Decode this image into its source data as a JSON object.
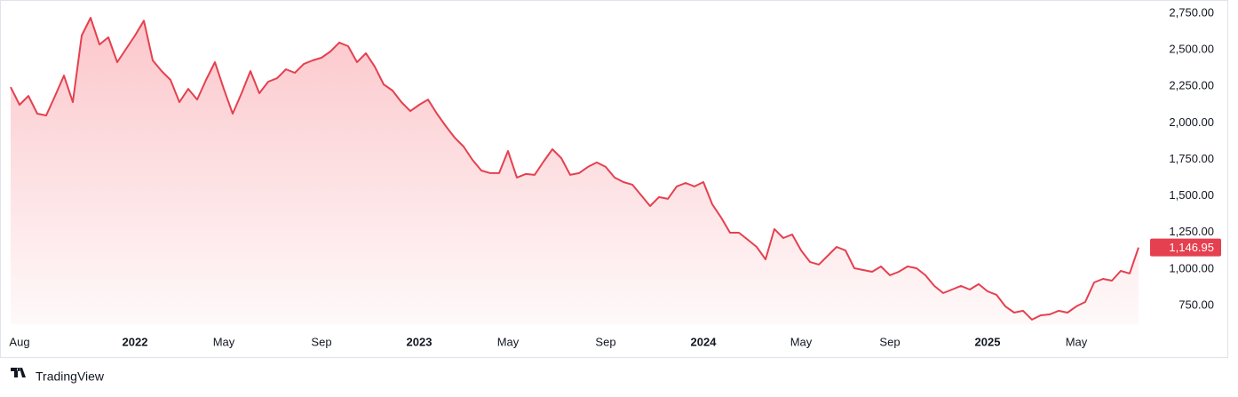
{
  "chart_data": {
    "type": "area",
    "brand": "TradingView",
    "color": "#e5404f",
    "last_price_label": "1,146.95",
    "categories": [
      null,
      "Aug",
      null,
      null,
      null,
      null,
      null,
      null,
      null,
      null,
      null,
      null,
      null,
      null,
      "2022",
      null,
      null,
      null,
      null,
      null,
      null,
      null,
      null,
      null,
      "May",
      null,
      null,
      null,
      null,
      null,
      null,
      null,
      null,
      null,
      null,
      "Sep",
      null,
      null,
      null,
      null,
      null,
      null,
      null,
      null,
      null,
      null,
      "2023",
      null,
      null,
      null,
      null,
      null,
      null,
      null,
      null,
      null,
      "May",
      null,
      null,
      null,
      null,
      null,
      null,
      null,
      null,
      null,
      null,
      "Sep",
      null,
      null,
      null,
      null,
      null,
      null,
      null,
      null,
      null,
      null,
      "2024",
      null,
      null,
      null,
      null,
      null,
      null,
      null,
      null,
      null,
      null,
      "May",
      null,
      null,
      null,
      null,
      null,
      null,
      null,
      null,
      null,
      "Sep",
      null,
      null,
      null,
      null,
      null,
      null,
      null,
      null,
      null,
      null,
      "2025",
      null,
      null,
      null,
      null,
      null,
      null,
      null,
      null,
      null,
      "May",
      null,
      null,
      null,
      null,
      null,
      null,
      null
    ],
    "values": [
      2245,
      2124,
      2185,
      2063,
      2051,
      2185,
      2324,
      2142,
      2598,
      2720,
      2537,
      2586,
      2416,
      2507,
      2598,
      2700,
      2428,
      2355,
      2294,
      2142,
      2233,
      2160,
      2294,
      2416,
      2233,
      2063,
      2203,
      2355,
      2203,
      2282,
      2306,
      2367,
      2343,
      2403,
      2428,
      2446,
      2489,
      2550,
      2525,
      2416,
      2477,
      2385,
      2264,
      2221,
      2142,
      2081,
      2124,
      2160,
      2063,
      1978,
      1899,
      1838,
      1747,
      1674,
      1656,
      1656,
      1808,
      1626,
      1650,
      1644,
      1735,
      1820,
      1759,
      1644,
      1656,
      1699,
      1729,
      1699,
      1626,
      1595,
      1577,
      1504,
      1431,
      1492,
      1480,
      1565,
      1589,
      1565,
      1595,
      1443,
      1352,
      1248,
      1248,
      1200,
      1151,
      1066,
      1273,
      1212,
      1236,
      1127,
      1048,
      1030,
      1090,
      1151,
      1127,
      1005,
      993,
      981,
      1017,
      957,
      981,
      1017,
      1005,
      957,
      884,
      835,
      859,
      884,
      859,
      896,
      847,
      823,
      744,
      701,
      714,
      653,
      683,
      689,
      714,
      701,
      744,
      774,
      908,
      932,
      920,
      987,
      969,
      1146.95
    ],
    "ylim": [
      622,
      2811
    ],
    "yticks": [
      {
        "value": 750,
        "label": "750.00"
      },
      {
        "value": 1000,
        "label": "1,000.00"
      },
      {
        "value": 1250,
        "label": "1,250.00"
      },
      {
        "value": 1500,
        "label": "1,500.00"
      },
      {
        "value": 1750,
        "label": "1,750.00"
      },
      {
        "value": 2000,
        "label": "2,000.00"
      },
      {
        "value": 2250,
        "label": "2,250.00"
      },
      {
        "value": 2500,
        "label": "2,500.00"
      },
      {
        "value": 2750,
        "label": "2,750.00"
      }
    ]
  }
}
